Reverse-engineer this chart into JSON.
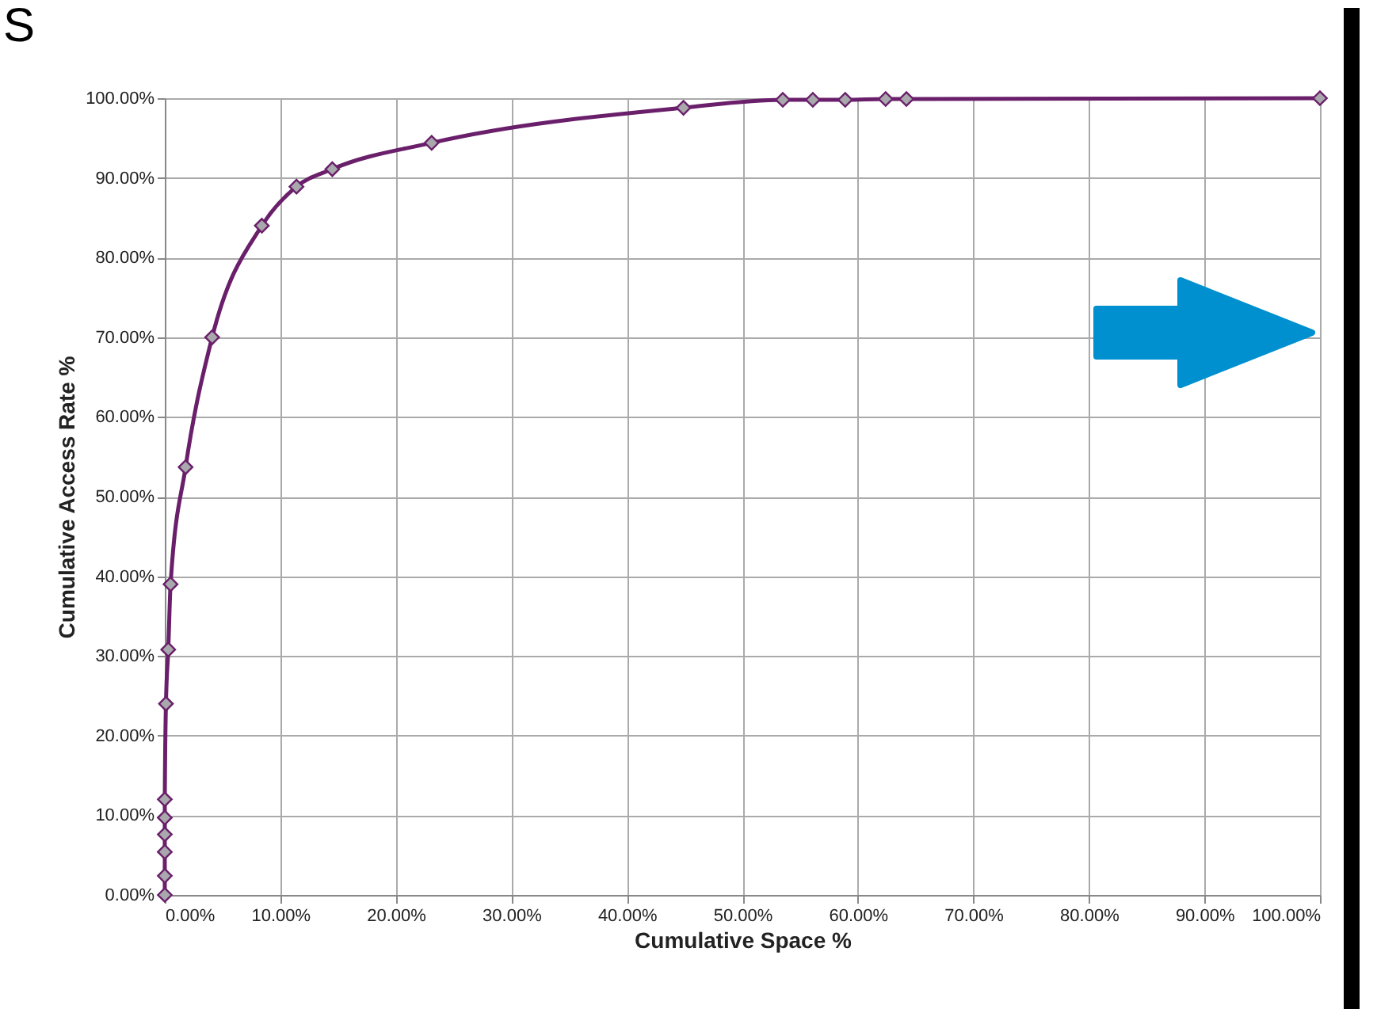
{
  "chart_data": {
    "type": "line",
    "title": "S",
    "xlabel": "Cumulative Space %",
    "ylabel": "Cumulative Access Rate %",
    "x": [
      0,
      0,
      0,
      0,
      0,
      0,
      0.1,
      0.3,
      0.5,
      1.8,
      4.1,
      8.4,
      11.4,
      14.5,
      23.1,
      44.9,
      53.5,
      56.1,
      58.9,
      62.4,
      64.2,
      100
    ],
    "series": [
      {
        "color": "#6a1f6a",
        "values": [
          0,
          2.4,
          5.4,
          7.6,
          9.7,
          12,
          24,
          30.8,
          39,
          53.7,
          70,
          84,
          88.9,
          91.1,
          94.4,
          98.8,
          99.8,
          99.8,
          99.8,
          99.9,
          99.9,
          100
        ]
      }
    ],
    "xlim": [
      0,
      100
    ],
    "ylim": [
      0,
      100
    ],
    "xticks": [
      {
        "value": 0,
        "label": "0.00%"
      },
      {
        "value": 10,
        "label": "10.00%"
      },
      {
        "value": 20,
        "label": "20.00%"
      },
      {
        "value": 30,
        "label": "30.00%"
      },
      {
        "value": 40,
        "label": "40.00%"
      },
      {
        "value": 50,
        "label": "50.00%"
      },
      {
        "value": 60,
        "label": "60.00%"
      },
      {
        "value": 70,
        "label": "70.00%"
      },
      {
        "value": 80,
        "label": "80.00%"
      },
      {
        "value": 90,
        "label": "90.00%"
      },
      {
        "value": 100,
        "label": "100.00%"
      }
    ],
    "yticks": [
      {
        "value": 0,
        "label": "0.00%"
      },
      {
        "value": 10,
        "label": "10.00%"
      },
      {
        "value": 20,
        "label": "20.00%"
      },
      {
        "value": 30,
        "label": "30.00%"
      },
      {
        "value": 40,
        "label": "40.00%"
      },
      {
        "value": 50,
        "label": "50.00%"
      },
      {
        "value": 60,
        "label": "60.00%"
      },
      {
        "value": 70,
        "label": "70.00%"
      },
      {
        "value": 80,
        "label": "80.00%"
      },
      {
        "value": 90,
        "label": "90.00%"
      },
      {
        "value": 100,
        "label": "100.00%"
      }
    ],
    "grid": true,
    "marker": "diamond",
    "line_style": "solid"
  }
}
